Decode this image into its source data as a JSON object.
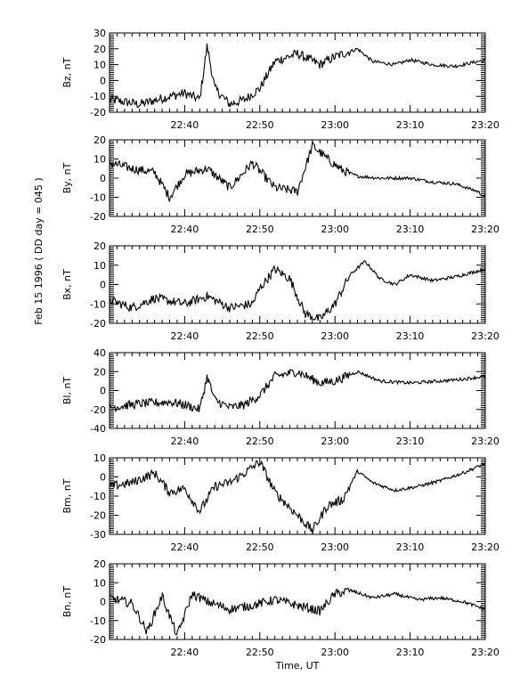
{
  "figure": {
    "side_label": "Feb 15 1996  ( DD day = 045 )",
    "x_title": "Time, UT"
  },
  "x_axis": {
    "range_minutes": [
      1350,
      1400
    ],
    "ticks": [
      {
        "value": 1360,
        "label": "22:40"
      },
      {
        "value": 1370,
        "label": "22:50"
      },
      {
        "value": 1380,
        "label": "23:00"
      },
      {
        "value": 1390,
        "label": "23:10"
      },
      {
        "value": 1400,
        "label": "23:20"
      }
    ]
  },
  "chart_data": [
    {
      "type": "line",
      "ylabel": "Bz, nT",
      "ylim": [
        -20,
        30
      ],
      "yticks": [
        -20,
        -10,
        0,
        10,
        20,
        30
      ],
      "x": [
        "22:30",
        "22:34",
        "22:38",
        "22:40",
        "22:42",
        "22:43",
        "22:44",
        "22:46",
        "22:48",
        "22:50",
        "22:52",
        "22:55",
        "22:58",
        "23:00",
        "23:03",
        "23:05",
        "23:08",
        "23:10",
        "23:13",
        "23:16",
        "23:20"
      ],
      "y": [
        -12,
        -15,
        -10,
        -8,
        -12,
        22,
        -5,
        -15,
        -12,
        -5,
        12,
        17,
        10,
        15,
        20,
        12,
        10,
        13,
        10,
        9,
        13
      ]
    },
    {
      "type": "line",
      "ylabel": "By, nT",
      "ylim": [
        -20,
        20
      ],
      "yticks": [
        -20,
        -10,
        0,
        10,
        20
      ],
      "x": [
        "22:30",
        "22:33",
        "22:36",
        "22:38",
        "22:40",
        "22:43",
        "22:46",
        "22:49",
        "22:52",
        "22:55",
        "22:57",
        "22:59",
        "23:01",
        "23:03",
        "23:06",
        "23:10",
        "23:13",
        "23:16",
        "23:19",
        "23:20"
      ],
      "y": [
        8,
        5,
        3,
        -10,
        2,
        5,
        -5,
        8,
        -5,
        -7,
        17,
        10,
        4,
        1,
        0,
        0,
        -2,
        -3,
        -7,
        -10
      ]
    },
    {
      "type": "line",
      "ylabel": "Bx, nT",
      "ylim": [
        -20,
        20
      ],
      "yticks": [
        -20,
        -10,
        0,
        10,
        20
      ],
      "x": [
        "22:30",
        "22:33",
        "22:36",
        "22:40",
        "22:43",
        "22:46",
        "22:49",
        "22:50",
        "22:52",
        "22:54",
        "22:56",
        "22:58",
        "23:00",
        "23:02",
        "23:04",
        "23:06",
        "23:08",
        "23:10",
        "23:13",
        "23:16",
        "23:20"
      ],
      "y": [
        -8,
        -12,
        -7,
        -10,
        -6,
        -12,
        -10,
        -2,
        8,
        3,
        -15,
        -18,
        -10,
        5,
        12,
        3,
        0,
        5,
        2,
        4,
        8
      ]
    },
    {
      "type": "line",
      "ylabel": "Bl, nT",
      "ylim": [
        -40,
        40
      ],
      "yticks": [
        -40,
        -20,
        0,
        20,
        40
      ],
      "x": [
        "22:30",
        "22:34",
        "22:38",
        "22:40",
        "22:42",
        "22:43",
        "22:44",
        "22:46",
        "22:48",
        "22:50",
        "22:52",
        "22:55",
        "22:58",
        "23:00",
        "23:03",
        "23:06",
        "23:10",
        "23:14",
        "23:17",
        "23:20"
      ],
      "y": [
        -18,
        -14,
        -12,
        -15,
        -20,
        15,
        -10,
        -18,
        -15,
        -5,
        15,
        20,
        8,
        10,
        20,
        10,
        8,
        10,
        12,
        15
      ]
    },
    {
      "type": "line",
      "ylabel": "Bm, nT",
      "ylim": [
        -30,
        10
      ],
      "yticks": [
        -30,
        -20,
        -10,
        0,
        10
      ],
      "x": [
        "22:30",
        "22:33",
        "22:36",
        "22:38",
        "22:40",
        "22:42",
        "22:44",
        "22:46",
        "22:48",
        "22:50",
        "22:52",
        "22:55",
        "22:57",
        "22:59",
        "23:01",
        "23:03",
        "23:05",
        "23:08",
        "23:11",
        "23:14",
        "23:17",
        "23:20"
      ],
      "y": [
        -5,
        -3,
        2,
        -8,
        -6,
        -18,
        -5,
        -3,
        2,
        8,
        -8,
        -20,
        -28,
        -15,
        -12,
        3,
        -3,
        -7,
        -5,
        -2,
        2,
        7
      ]
    },
    {
      "type": "line",
      "ylabel": "Bn, nT",
      "ylim": [
        -20,
        20
      ],
      "yticks": [
        -20,
        -10,
        0,
        10,
        20
      ],
      "x": [
        "22:30",
        "22:33",
        "22:35",
        "22:37",
        "22:39",
        "22:41",
        "22:43",
        "22:46",
        "22:49",
        "22:52",
        "22:55",
        "22:58",
        "23:00",
        "23:02",
        "23:05",
        "23:08",
        "23:11",
        "23:14",
        "23:17",
        "23:20"
      ],
      "y": [
        2,
        -1,
        -16,
        3,
        -18,
        4,
        0,
        -4,
        -2,
        1,
        -2,
        -5,
        4,
        6,
        2,
        4,
        1,
        2,
        0,
        -4
      ]
    }
  ]
}
